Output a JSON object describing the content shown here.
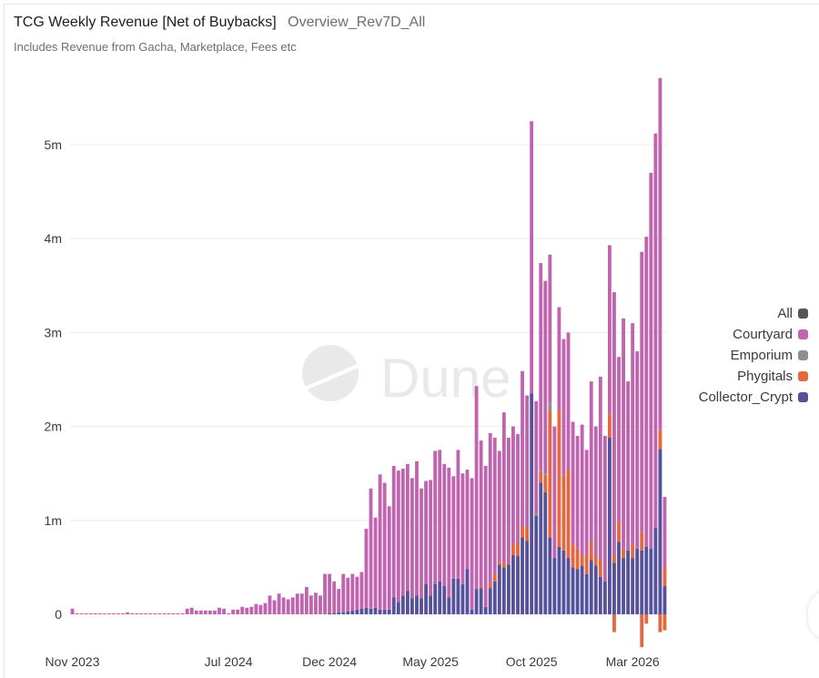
{
  "header": {
    "title": "TCG Weekly Revenue [Net of Buybacks]",
    "query_name": "Overview_Rev7D_All",
    "subtitle": "Includes Revenue from Gacha, Marketplace, Fees etc"
  },
  "watermark": {
    "text": "Dune",
    "icon": "dune-logo-icon"
  },
  "legend": [
    {
      "label": "All",
      "color": "#55555c"
    },
    {
      "label": "Courtyard",
      "color": "#c064b0"
    },
    {
      "label": "Emporium",
      "color": "#8f8f8f"
    },
    {
      "label": "Phygitals",
      "color": "#e5673f"
    },
    {
      "label": "Collector_Crypt",
      "color": "#55519a"
    }
  ],
  "chart_data": {
    "type": "bar",
    "stacked": true,
    "title": "TCG Weekly Revenue [Net of Buybacks]",
    "subtitle": "Includes Revenue from Gacha, Marketplace, Fees etc",
    "xlabel": "",
    "ylabel": "",
    "ylim": [
      -0.4,
      5.8
    ],
    "y_unit": "millions USD",
    "y_ticks": [
      0,
      1,
      2,
      3,
      4,
      5
    ],
    "y_tick_labels": [
      "0",
      "1m",
      "2m",
      "3m",
      "4m",
      "5m"
    ],
    "x_tick_labels": [
      "Nov 2023",
      "Jul 2024",
      "Dec 2024",
      "May 2025",
      "Oct 2025",
      "Mar 2026"
    ],
    "x_tick_indices": [
      0,
      34,
      56,
      78,
      100,
      122
    ],
    "grid": true,
    "legend_position": "right",
    "series_order_bottom_to_top": [
      "Collector_Crypt",
      "Phygitals",
      "Emporium",
      "Courtyard"
    ],
    "series": [
      {
        "name": "Collector_Crypt",
        "color": "#55519a",
        "values": [
          0,
          0,
          0,
          0,
          0,
          0,
          0,
          0,
          0,
          0,
          0,
          0,
          0,
          0,
          0,
          0,
          0,
          0,
          0,
          0,
          0,
          0,
          0,
          0,
          0,
          0,
          0,
          0,
          0,
          0,
          0,
          0,
          0,
          0,
          0,
          0,
          0,
          0,
          0,
          0,
          0,
          0,
          0,
          0,
          0,
          0,
          0,
          0,
          0,
          0,
          0,
          0,
          0,
          0,
          0,
          0,
          0.01,
          0.01,
          0.02,
          0.02,
          0.03,
          0.04,
          0.05,
          0.06,
          0.07,
          0.06,
          0.07,
          0.05,
          0.05,
          0.05,
          0.18,
          0.13,
          0.2,
          0.25,
          0.17,
          0.2,
          0.17,
          0.32,
          0.2,
          0.32,
          0.35,
          0.3,
          0.18,
          0.38,
          0.38,
          0.32,
          0.48,
          0.05,
          0.27,
          0.28,
          0.08,
          0.28,
          0.35,
          0.53,
          0.5,
          0.53,
          0.63,
          0.62,
          0.82,
          0.78,
          2.35,
          1.05,
          1.4,
          1.3,
          0.82,
          0.6,
          0.72,
          0.68,
          0.6,
          0.5,
          0.48,
          0.52,
          0.43,
          0.58,
          0.52,
          0.4,
          0.35,
          1.88,
          0.55,
          0.77,
          0.6,
          0.68,
          0.6,
          0.7,
          0.68,
          0.72,
          0.7,
          0.92,
          1.76,
          0.3
        ]
      },
      {
        "name": "Phygitals",
        "color": "#e5673f",
        "values": [
          0,
          0,
          0,
          0,
          0,
          0,
          0,
          0,
          0,
          0,
          0,
          0,
          0,
          0,
          0,
          0,
          0,
          0,
          0,
          0,
          0,
          0,
          0,
          0,
          0,
          0,
          0,
          0,
          0,
          0,
          0,
          0,
          0,
          0,
          0,
          0,
          0,
          0,
          0,
          0,
          0,
          0,
          0,
          0,
          0,
          0,
          0,
          0,
          0,
          0,
          0,
          0,
          0,
          0,
          0,
          0,
          0,
          0,
          0,
          0,
          0,
          0,
          0,
          0,
          0,
          0,
          0,
          0,
          0,
          0,
          0,
          0,
          0,
          0,
          0,
          0,
          0,
          0,
          0,
          0,
          0,
          0,
          0,
          0,
          0,
          0,
          0,
          0,
          0,
          0.02,
          0,
          0.05,
          0.08,
          0.03,
          0.05,
          0,
          0.12,
          0.15,
          0.12,
          0.15,
          0.0,
          0.0,
          0.12,
          0.18,
          1.35,
          0.0,
          1.45,
          0.8,
          0.95,
          0.25,
          0.22,
          0.1,
          0.2,
          0.2,
          0.1,
          0.18,
          0.0,
          0.25,
          0.08,
          0.22,
          0.1,
          0,
          0.15,
          0.0,
          0.2,
          0.0,
          0.0,
          0.0,
          0.2,
          0.2,
          0.0,
          0.0,
          0.0,
          0
        ]
      },
      {
        "name": "Emporium",
        "color": "#8f8f8f",
        "values": [
          0,
          0,
          0,
          0,
          0,
          0,
          0,
          0,
          0,
          0,
          0,
          0,
          0,
          0,
          0,
          0,
          0,
          0,
          0,
          0,
          0,
          0,
          0,
          0,
          0,
          0,
          0,
          0,
          0,
          0,
          0,
          0,
          0,
          0,
          0,
          0,
          0,
          0,
          0,
          0,
          0,
          0,
          0,
          0,
          0,
          0,
          0,
          0,
          0,
          0,
          0,
          0,
          0,
          0,
          0,
          0,
          0,
          0,
          0,
          0,
          0,
          0,
          0,
          0,
          0,
          0,
          0,
          0,
          0,
          0,
          0,
          0,
          0,
          0,
          0,
          0,
          0,
          0,
          0,
          0,
          0,
          0,
          0,
          0,
          0,
          0,
          0,
          0,
          0,
          0,
          0,
          0,
          0,
          0,
          0,
          0,
          0,
          0,
          0,
          0,
          0,
          0.02,
          0.02,
          0.02,
          0.08,
          0,
          0,
          0,
          0,
          0,
          0,
          0,
          0,
          0,
          0,
          0,
          0,
          0,
          0,
          0,
          0,
          0,
          0,
          0,
          0,
          0,
          0,
          0,
          0,
          0,
          0,
          0,
          0,
          0
        ]
      },
      {
        "name": "Courtyard",
        "color": "#c064b0",
        "values": [
          0.06,
          0.01,
          0.01,
          0.01,
          0.01,
          0.01,
          0.01,
          0.01,
          0.01,
          0.01,
          0.01,
          0.01,
          0.02,
          0.01,
          0.01,
          0.01,
          0.01,
          0.01,
          0.01,
          0.01,
          0.01,
          0.01,
          0.01,
          0.01,
          0.01,
          0.06,
          0.07,
          0.04,
          0.04,
          0.04,
          0.04,
          0.04,
          0.07,
          0.06,
          0.01,
          0.05,
          0.05,
          0.08,
          0.07,
          0.08,
          0.11,
          0.1,
          0.12,
          0.2,
          0.15,
          0.22,
          0.18,
          0.16,
          0.18,
          0.22,
          0.22,
          0.29,
          0.2,
          0.23,
          0.2,
          0.43,
          0.42,
          0.34,
          0.25,
          0.41,
          0.36,
          0.39,
          0.35,
          0.39,
          0.84,
          1.28,
          0.96,
          1.44,
          1.35,
          1.1,
          1.4,
          1.4,
          1.35,
          1.35,
          1.28,
          1.43,
          1.17,
          1.1,
          1.23,
          1.42,
          1.4,
          1.3,
          1.38,
          1.09,
          1.37,
          1.18,
          1.06,
          1.4,
          2.16,
          1.55,
          1.5,
          1.6,
          1.45,
          1.18,
          1.6,
          1.35,
          1.25,
          1.15,
          1.65,
          1.4,
          2.9,
          1.2,
          2.2,
          2.05,
          1.58,
          1.4,
          1.1,
          1.45,
          1.45,
          1.3,
          1.2,
          1.4,
          1.12,
          1.7,
          1.38,
          1.95,
          1.55,
          1.8,
          2.8,
          1.75,
          2.45,
          1.8,
          2.35,
          2.1,
          2.98,
          3.3,
          4.0,
          4.2,
          3.75,
          0.75
        ]
      },
      {
        "name": "Phygitals_negative",
        "color": "#e5673f",
        "values": [
          0,
          0,
          0,
          0,
          0,
          0,
          0,
          0,
          0,
          0,
          0,
          0,
          0,
          0,
          0,
          0,
          0,
          0,
          0,
          0,
          0,
          0,
          0,
          0,
          0,
          0,
          0,
          0,
          0,
          0,
          0,
          0,
          0,
          0,
          0,
          0,
          0,
          0,
          0,
          0,
          0,
          0,
          0,
          0,
          0,
          0,
          0,
          0,
          0,
          0,
          0,
          0,
          0,
          0,
          0,
          0,
          0,
          0,
          0,
          0,
          0,
          0,
          0,
          0,
          0,
          0,
          0,
          0,
          0,
          0,
          0,
          0,
          0,
          0,
          0,
          0,
          0,
          0,
          0,
          0,
          0,
          0,
          0,
          0,
          0,
          0,
          0,
          0,
          0,
          0,
          0,
          0,
          0,
          0,
          0,
          0,
          0,
          0,
          0,
          0,
          0,
          0,
          0,
          0,
          0,
          0,
          0,
          0,
          0,
          0,
          0,
          0,
          0,
          0,
          0,
          0,
          0,
          0,
          -0.19,
          0,
          0,
          0,
          0,
          0,
          -0.35,
          -0.1,
          0,
          0,
          -0.19,
          -0.17,
          0,
          0
        ]
      }
    ]
  }
}
